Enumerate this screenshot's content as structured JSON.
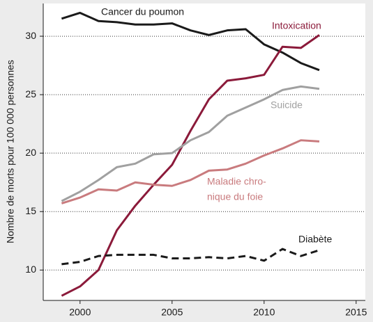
{
  "chart_data": {
    "type": "line",
    "y_label": "Nombre de morts pour 100 000 personnes",
    "x": [
      1999,
      2000,
      2001,
      2002,
      2003,
      2004,
      2005,
      2006,
      2007,
      2008,
      2009,
      2010,
      2011,
      2012,
      2013
    ],
    "xlim": [
      1998,
      2015.5
    ],
    "xticks": [
      2000,
      2005,
      2010,
      2015
    ],
    "ylim": [
      7.4,
      32.8
    ],
    "yticks": [
      10,
      15,
      20,
      25,
      30
    ],
    "grid": true,
    "series": [
      {
        "name": "Cancer du poumon",
        "color": "#1a1a1a",
        "dashed": false,
        "values": [
          31.5,
          32.0,
          31.3,
          31.2,
          31.0,
          31.0,
          31.1,
          30.5,
          30.1,
          30.5,
          30.6,
          29.3,
          28.6,
          27.7,
          27.1
        ]
      },
      {
        "name": "Intoxication",
        "color": "#8b1a3a",
        "dashed": false,
        "values": [
          7.8,
          8.6,
          10.0,
          13.4,
          15.5,
          17.3,
          19.0,
          21.9,
          24.6,
          26.2,
          26.4,
          26.7,
          29.1,
          29.0,
          30.1
        ]
      },
      {
        "name": "Suicide",
        "color": "#a0a0a0",
        "dashed": false,
        "values": [
          15.9,
          16.7,
          17.7,
          18.8,
          19.1,
          19.9,
          20.0,
          21.1,
          21.8,
          23.2,
          23.9,
          24.6,
          25.4,
          25.7,
          25.5
        ]
      },
      {
        "name_lines": [
          "Maladie chro-",
          "nique du foie"
        ],
        "color": "#c97b7e",
        "dashed": false,
        "values": [
          15.7,
          16.2,
          16.9,
          16.8,
          17.5,
          17.3,
          17.2,
          17.7,
          18.5,
          18.6,
          19.1,
          19.8,
          20.4,
          21.1,
          21.0
        ]
      },
      {
        "name": "Diabète",
        "color": "#1a1a1a",
        "dashed": true,
        "values": [
          10.5,
          10.7,
          11.2,
          11.3,
          11.3,
          11.3,
          11.0,
          11.0,
          11.1,
          11.0,
          11.2,
          10.8,
          11.8,
          11.2,
          11.7
        ]
      }
    ]
  }
}
